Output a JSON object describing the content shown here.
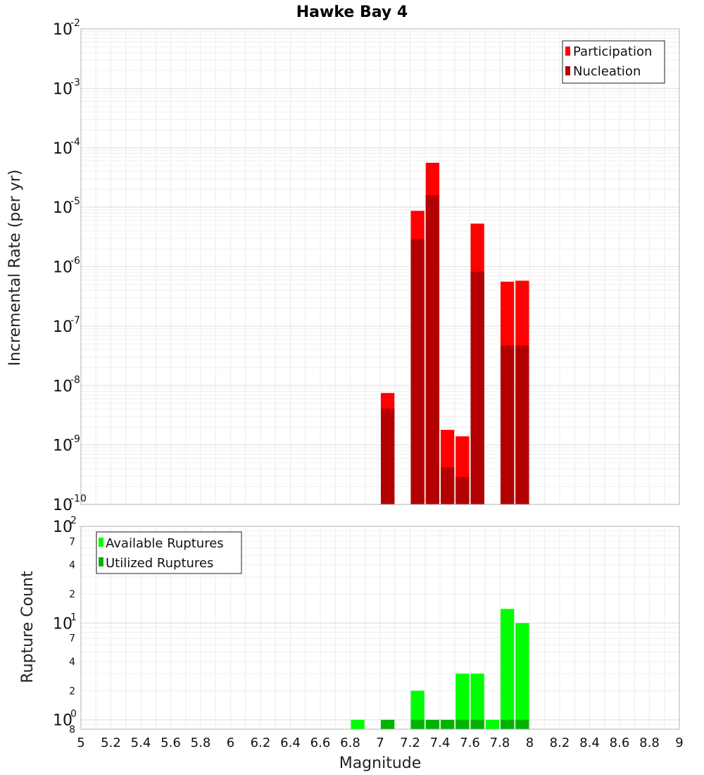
{
  "chart_data": [
    {
      "type": "bar",
      "title": "Hawke Bay 4",
      "xlabel": "",
      "ylabel": "Incremental Rate (per yr)",
      "yscale": "log",
      "ylim": [
        1e-10,
        0.01
      ],
      "xlim": [
        5,
        9
      ],
      "y_ticks": [
        {
          "base": "10",
          "exp": "-2",
          "value": 0.01
        },
        {
          "base": "10",
          "exp": "-3",
          "value": 0.001
        },
        {
          "base": "10",
          "exp": "-4",
          "value": 0.0001
        },
        {
          "base": "10",
          "exp": "-5",
          "value": 1e-05
        },
        {
          "base": "10",
          "exp": "-6",
          "value": 1e-06
        },
        {
          "base": "10",
          "exp": "-7",
          "value": 1e-07
        },
        {
          "base": "10",
          "exp": "-8",
          "value": 1e-08
        },
        {
          "base": "10",
          "exp": "-9",
          "value": 1e-09
        },
        {
          "base": "10",
          "exp": "-10",
          "value": 1e-10
        }
      ],
      "legend": {
        "position": "top-right",
        "entries": [
          "Participation",
          "Nucleation"
        ]
      },
      "series": [
        {
          "name": "Participation",
          "color": "#ff0000",
          "x": [
            7.05,
            7.25,
            7.35,
            7.45,
            7.55,
            7.65,
            7.85,
            7.95
          ],
          "values": [
            7.5e-09,
            8.7e-06,
            5.6e-05,
            1.8e-09,
            1.4e-09,
            5.3e-06,
            5.6e-07,
            5.8e-07
          ]
        },
        {
          "name": "Nucleation",
          "color": "#b30000",
          "x": [
            7.05,
            7.25,
            7.35,
            7.45,
            7.55,
            7.65,
            7.85,
            7.95
          ],
          "values": [
            4.1e-09,
            2.9e-06,
            1.6e-05,
            4.2e-10,
            2.9e-10,
            8.2e-07,
            4.7e-08,
            4.7e-08
          ]
        }
      ]
    },
    {
      "type": "bar",
      "title": "",
      "xlabel": "Magnitude",
      "ylabel": "Rupture Count",
      "yscale": "log",
      "ylim": [
        0.8,
        100
      ],
      "xlim": [
        5,
        9
      ],
      "x_ticks": [
        "5",
        "5.2",
        "5.4",
        "5.6",
        "5.8",
        "6",
        "6.2",
        "6.4",
        "6.6",
        "6.8",
        "7",
        "7.2",
        "7.4",
        "7.6",
        "7.8",
        "8",
        "8.2",
        "8.4",
        "8.6",
        "8.8",
        "9"
      ],
      "y_ticks": [
        {
          "base": "10",
          "exp": "2",
          "value": 100
        },
        {
          "base": "10",
          "exp": "1",
          "value": 10
        },
        {
          "base": "10",
          "exp": "0",
          "value": 1
        }
      ],
      "y_minor_ticks": [
        {
          "label": "7",
          "value": 70
        },
        {
          "label": "4",
          "value": 40
        },
        {
          "label": "2",
          "value": 20
        },
        {
          "label": "7",
          "value": 7
        },
        {
          "label": "4",
          "value": 4
        },
        {
          "label": "2",
          "value": 2
        },
        {
          "label": "8",
          "value": 0.8
        }
      ],
      "legend": {
        "position": "top-left",
        "entries": [
          "Available Ruptures",
          "Utilized Ruptures"
        ]
      },
      "series": [
        {
          "name": "Available Ruptures",
          "color": "#00ff00",
          "x": [
            6.85,
            7.25,
            7.55,
            7.65,
            7.75,
            7.85,
            7.95
          ],
          "values": [
            1,
            2,
            3,
            3,
            1,
            14,
            10
          ]
        },
        {
          "name": "Utilized Ruptures",
          "color": "#00b300",
          "x": [
            7.05,
            7.25,
            7.35,
            7.45,
            7.55,
            7.65,
            7.85,
            7.95
          ],
          "values": [
            1,
            1,
            1,
            1,
            1,
            1,
            1,
            1
          ]
        }
      ]
    }
  ]
}
